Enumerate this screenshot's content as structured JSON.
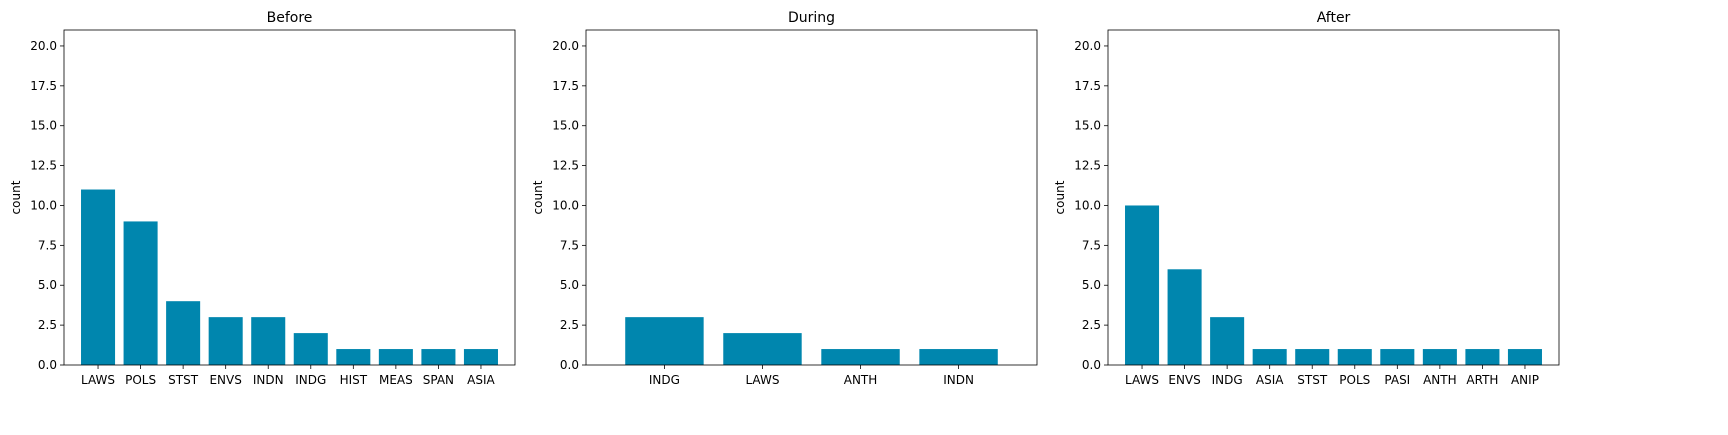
{
  "chart_data": [
    {
      "type": "bar",
      "title": "Before",
      "ylabel": "count",
      "ylim": [
        0,
        21
      ],
      "yticks": [
        "0.0",
        "2.5",
        "5.0",
        "7.5",
        "10.0",
        "12.5",
        "15.0",
        "17.5",
        "20.0"
      ],
      "categories": [
        "LAWS",
        "POLS",
        "STST",
        "ENVS",
        "INDN",
        "INDG",
        "HIST",
        "MEAS",
        "SPAN",
        "ASIA"
      ],
      "values": [
        11,
        9,
        4,
        3,
        3,
        2,
        1,
        1,
        1,
        1
      ],
      "color": "#0086ae",
      "grid": false
    },
    {
      "type": "bar",
      "title": "During",
      "ylabel": "count",
      "ylim": [
        0,
        21
      ],
      "yticks": [
        "0.0",
        "2.5",
        "5.0",
        "7.5",
        "10.0",
        "12.5",
        "15.0",
        "17.5",
        "20.0"
      ],
      "categories": [
        "INDG",
        "LAWS",
        "ANTH",
        "INDN"
      ],
      "values": [
        3,
        2,
        1,
        1
      ],
      "color": "#0086ae",
      "grid": false
    },
    {
      "type": "bar",
      "title": "After",
      "ylabel": "count",
      "ylim": [
        0,
        21
      ],
      "yticks": [
        "0.0",
        "2.5",
        "5.0",
        "7.5",
        "10.0",
        "12.5",
        "15.0",
        "17.5",
        "20.0"
      ],
      "categories": [
        "LAWS",
        "ENVS",
        "INDG",
        "ASIA",
        "STST",
        "POLS",
        "PASI",
        "ANTH",
        "ARTH",
        "ANIP"
      ],
      "values": [
        10,
        6,
        3,
        1,
        1,
        1,
        1,
        1,
        1,
        1
      ],
      "color": "#0086ae",
      "grid": false
    }
  ]
}
